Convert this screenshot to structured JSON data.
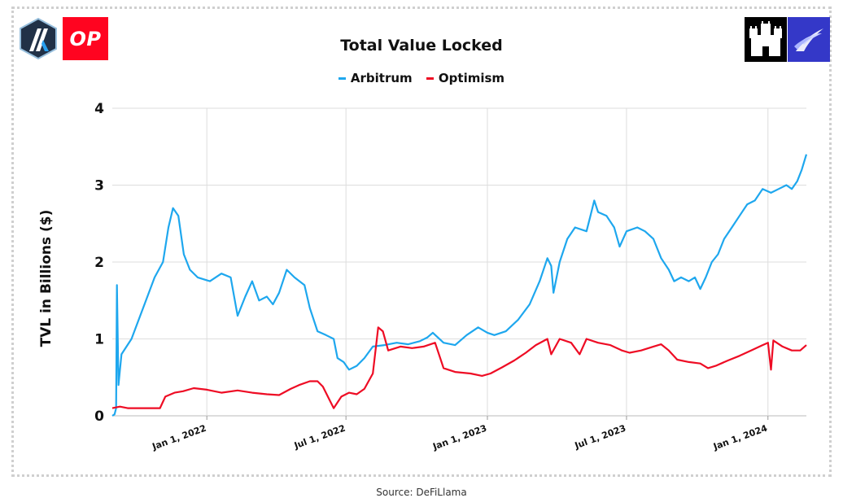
{
  "logos": {
    "left_primary": "arbitrum-logo",
    "left_secondary_text": "OP",
    "right_primary": "castle-logo",
    "right_secondary": "wing-logo"
  },
  "colors": {
    "arbitrum": "#1ea7ee",
    "optimism": "#ee0c24",
    "op_brand": "#ff0420",
    "grid": "#dddddd",
    "text": "#111111"
  },
  "source_text": "Source: DeFiLlama",
  "chart_data": {
    "type": "line",
    "title": "Total Value Locked",
    "xlabel": "",
    "ylabel": "TVL in  Billions ($)",
    "ylim": [
      0,
      4
    ],
    "yticks": [
      0,
      1,
      2,
      3,
      4
    ],
    "ytick_labels": [
      "0",
      "1",
      "2",
      "3",
      "4"
    ],
    "xlim": [
      "2021-08-31",
      "2024-02-20"
    ],
    "xticks": [
      "2022-01-01",
      "2022-07-01",
      "2023-01-01",
      "2023-07-01",
      "2024-01-01"
    ],
    "xtick_labels": [
      "Jan 1, 2022",
      "Jul 1, 2022",
      "Jan 1, 2023",
      "Jul 1, 2023",
      "Jan 1, 2024"
    ],
    "legend_position": "top-center",
    "grid": true,
    "series": [
      {
        "name": "Arbitrum",
        "points": [
          [
            "2021-08-31",
            0.0
          ],
          [
            "2021-09-03",
            0.02
          ],
          [
            "2021-09-05",
            0.1
          ],
          [
            "2021-09-06",
            1.7
          ],
          [
            "2021-09-08",
            0.4
          ],
          [
            "2021-09-12",
            0.8
          ],
          [
            "2021-09-25",
            1.0
          ],
          [
            "2021-10-10",
            1.4
          ],
          [
            "2021-10-25",
            1.8
          ],
          [
            "2021-11-05",
            2.0
          ],
          [
            "2021-11-12",
            2.45
          ],
          [
            "2021-11-18",
            2.7
          ],
          [
            "2021-11-25",
            2.6
          ],
          [
            "2021-12-02",
            2.1
          ],
          [
            "2021-12-10",
            1.9
          ],
          [
            "2021-12-20",
            1.8
          ],
          [
            "2022-01-05",
            1.75
          ],
          [
            "2022-01-20",
            1.85
          ],
          [
            "2022-02-01",
            1.8
          ],
          [
            "2022-02-10",
            1.3
          ],
          [
            "2022-02-20",
            1.55
          ],
          [
            "2022-03-01",
            1.75
          ],
          [
            "2022-03-10",
            1.5
          ],
          [
            "2022-03-20",
            1.55
          ],
          [
            "2022-03-28",
            1.45
          ],
          [
            "2022-04-05",
            1.6
          ],
          [
            "2022-04-15",
            1.9
          ],
          [
            "2022-04-25",
            1.8
          ],
          [
            "2022-05-08",
            1.7
          ],
          [
            "2022-05-15",
            1.4
          ],
          [
            "2022-05-25",
            1.1
          ],
          [
            "2022-06-05",
            1.05
          ],
          [
            "2022-06-15",
            1.0
          ],
          [
            "2022-06-20",
            0.75
          ],
          [
            "2022-06-28",
            0.7
          ],
          [
            "2022-07-05",
            0.6
          ],
          [
            "2022-07-15",
            0.65
          ],
          [
            "2022-07-25",
            0.75
          ],
          [
            "2022-08-05",
            0.9
          ],
          [
            "2022-08-20",
            0.92
          ],
          [
            "2022-09-05",
            0.95
          ],
          [
            "2022-09-20",
            0.93
          ],
          [
            "2022-10-05",
            0.97
          ],
          [
            "2022-10-15",
            1.02
          ],
          [
            "2022-10-22",
            1.08
          ],
          [
            "2022-11-05",
            0.95
          ],
          [
            "2022-11-20",
            0.92
          ],
          [
            "2022-12-05",
            1.05
          ],
          [
            "2022-12-20",
            1.15
          ],
          [
            "2023-01-01",
            1.08
          ],
          [
            "2023-01-10",
            1.05
          ],
          [
            "2023-01-25",
            1.1
          ],
          [
            "2023-02-10",
            1.25
          ],
          [
            "2023-02-25",
            1.45
          ],
          [
            "2023-03-10",
            1.75
          ],
          [
            "2023-03-20",
            2.05
          ],
          [
            "2023-03-25",
            1.95
          ],
          [
            "2023-03-28",
            1.6
          ],
          [
            "2023-04-05",
            2.0
          ],
          [
            "2023-04-15",
            2.3
          ],
          [
            "2023-04-25",
            2.45
          ],
          [
            "2023-05-10",
            2.4
          ],
          [
            "2023-05-15",
            2.6
          ],
          [
            "2023-05-20",
            2.8
          ],
          [
            "2023-05-25",
            2.65
          ],
          [
            "2023-06-05",
            2.6
          ],
          [
            "2023-06-15",
            2.45
          ],
          [
            "2023-06-22",
            2.2
          ],
          [
            "2023-07-01",
            2.4
          ],
          [
            "2023-07-15",
            2.45
          ],
          [
            "2023-07-25",
            2.4
          ],
          [
            "2023-08-05",
            2.3
          ],
          [
            "2023-08-15",
            2.05
          ],
          [
            "2023-08-25",
            1.9
          ],
          [
            "2023-09-01",
            1.75
          ],
          [
            "2023-09-10",
            1.8
          ],
          [
            "2023-09-20",
            1.75
          ],
          [
            "2023-09-28",
            1.8
          ],
          [
            "2023-10-05",
            1.65
          ],
          [
            "2023-10-12",
            1.8
          ],
          [
            "2023-10-20",
            2.0
          ],
          [
            "2023-10-28",
            2.1
          ],
          [
            "2023-11-05",
            2.3
          ],
          [
            "2023-11-15",
            2.45
          ],
          [
            "2023-11-25",
            2.6
          ],
          [
            "2023-12-05",
            2.75
          ],
          [
            "2023-12-15",
            2.8
          ],
          [
            "2023-12-25",
            2.95
          ],
          [
            "2024-01-05",
            2.9
          ],
          [
            "2024-01-15",
            2.95
          ],
          [
            "2024-01-25",
            3.0
          ],
          [
            "2024-02-01",
            2.95
          ],
          [
            "2024-02-08",
            3.05
          ],
          [
            "2024-02-14",
            3.2
          ],
          [
            "2024-02-20",
            3.4
          ]
        ]
      },
      {
        "name": "Optimism",
        "points": [
          [
            "2021-08-31",
            0.1
          ],
          [
            "2021-09-10",
            0.12
          ],
          [
            "2021-09-20",
            0.1
          ],
          [
            "2021-10-10",
            0.1
          ],
          [
            "2021-11-01",
            0.1
          ],
          [
            "2021-11-08",
            0.25
          ],
          [
            "2021-11-20",
            0.3
          ],
          [
            "2021-12-01",
            0.32
          ],
          [
            "2021-12-15",
            0.36
          ],
          [
            "2022-01-01",
            0.34
          ],
          [
            "2022-01-20",
            0.3
          ],
          [
            "2022-02-10",
            0.33
          ],
          [
            "2022-03-01",
            0.3
          ],
          [
            "2022-03-20",
            0.28
          ],
          [
            "2022-04-05",
            0.27
          ],
          [
            "2022-04-20",
            0.35
          ],
          [
            "2022-05-01",
            0.4
          ],
          [
            "2022-05-15",
            0.45
          ],
          [
            "2022-05-25",
            0.45
          ],
          [
            "2022-06-01",
            0.38
          ],
          [
            "2022-06-10",
            0.2
          ],
          [
            "2022-06-15",
            0.1
          ],
          [
            "2022-06-25",
            0.25
          ],
          [
            "2022-07-05",
            0.3
          ],
          [
            "2022-07-15",
            0.28
          ],
          [
            "2022-07-25",
            0.35
          ],
          [
            "2022-08-05",
            0.55
          ],
          [
            "2022-08-12",
            1.15
          ],
          [
            "2022-08-18",
            1.1
          ],
          [
            "2022-08-25",
            0.85
          ],
          [
            "2022-09-10",
            0.9
          ],
          [
            "2022-09-25",
            0.88
          ],
          [
            "2022-10-10",
            0.9
          ],
          [
            "2022-10-25",
            0.95
          ],
          [
            "2022-11-05",
            0.62
          ],
          [
            "2022-11-20",
            0.57
          ],
          [
            "2022-12-10",
            0.55
          ],
          [
            "2022-12-25",
            0.52
          ],
          [
            "2023-01-05",
            0.55
          ],
          [
            "2023-01-20",
            0.63
          ],
          [
            "2023-02-05",
            0.72
          ],
          [
            "2023-02-20",
            0.82
          ],
          [
            "2023-03-05",
            0.92
          ],
          [
            "2023-03-20",
            1.0
          ],
          [
            "2023-03-25",
            0.8
          ],
          [
            "2023-04-05",
            1.0
          ],
          [
            "2023-04-20",
            0.95
          ],
          [
            "2023-05-01",
            0.8
          ],
          [
            "2023-05-10",
            1.0
          ],
          [
            "2023-05-25",
            0.95
          ],
          [
            "2023-06-10",
            0.92
          ],
          [
            "2023-06-25",
            0.85
          ],
          [
            "2023-07-05",
            0.82
          ],
          [
            "2023-07-20",
            0.85
          ],
          [
            "2023-08-05",
            0.9
          ],
          [
            "2023-08-15",
            0.93
          ],
          [
            "2023-08-25",
            0.85
          ],
          [
            "2023-09-05",
            0.73
          ],
          [
            "2023-09-20",
            0.7
          ],
          [
            "2023-10-05",
            0.68
          ],
          [
            "2023-10-15",
            0.62
          ],
          [
            "2023-10-25",
            0.65
          ],
          [
            "2023-11-10",
            0.72
          ],
          [
            "2023-11-25",
            0.78
          ],
          [
            "2023-12-10",
            0.85
          ],
          [
            "2023-12-25",
            0.92
          ],
          [
            "2024-01-01",
            0.95
          ],
          [
            "2024-01-05",
            0.6
          ],
          [
            "2024-01-08",
            0.98
          ],
          [
            "2024-01-20",
            0.9
          ],
          [
            "2024-02-01",
            0.85
          ],
          [
            "2024-02-12",
            0.85
          ],
          [
            "2024-02-20",
            0.92
          ]
        ]
      }
    ]
  }
}
